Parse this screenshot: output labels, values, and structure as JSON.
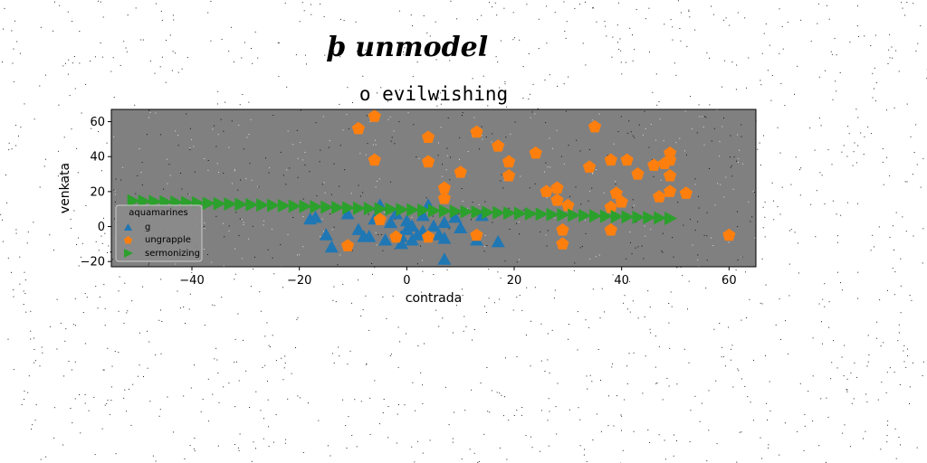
{
  "chart_data": {
    "type": "scatter",
    "suptitle": "ϸ unmodel",
    "title": "o evilwishing",
    "xlabel": "contrada",
    "ylabel": "venkata",
    "xlim": [
      -55,
      65
    ],
    "ylim": [
      -23,
      67
    ],
    "xticks": [
      -40,
      -20,
      0,
      20,
      40,
      60
    ],
    "yticks": [
      -20,
      0,
      20,
      40,
      60
    ],
    "xtick_labels": [
      "−40",
      "−20",
      "0",
      "20",
      "40",
      "60"
    ],
    "ytick_labels": [
      "−20",
      "0",
      "20",
      "40",
      "60"
    ],
    "legend": {
      "title": "aquamarines",
      "location": "lower-left"
    },
    "colors": {
      "axes_bg": "#808080",
      "g": "#1f77b4",
      "ungrapple": "#ff7f0e",
      "sermonizing": "#2ca02c"
    },
    "series": [
      {
        "name": "g",
        "marker": "triangle",
        "points": [
          [
            -18,
            4
          ],
          [
            -17,
            5
          ],
          [
            -15,
            -5
          ],
          [
            -14,
            -12
          ],
          [
            -11,
            7
          ],
          [
            -9,
            -2
          ],
          [
            -8,
            -6
          ],
          [
            -7,
            -6
          ],
          [
            -6,
            4
          ],
          [
            -5,
            12
          ],
          [
            -4,
            -8
          ],
          [
            -3,
            2
          ],
          [
            -2,
            7
          ],
          [
            -1,
            -6
          ],
          [
            0,
            3
          ],
          [
            0,
            -2
          ],
          [
            1,
            -8
          ],
          [
            1,
            0
          ],
          [
            2,
            -5
          ],
          [
            3,
            6
          ],
          [
            4,
            12
          ],
          [
            5,
            0
          ],
          [
            6,
            -5
          ],
          [
            7,
            2
          ],
          [
            7,
            -7
          ],
          [
            7,
            -19
          ],
          [
            9,
            5
          ],
          [
            10,
            -1
          ],
          [
            13,
            -8
          ],
          [
            14,
            6
          ],
          [
            17,
            -9
          ],
          [
            -1,
            -10
          ],
          [
            3,
            -3
          ]
        ]
      },
      {
        "name": "ungrapple",
        "marker": "pentagon",
        "points": [
          [
            -9,
            56
          ],
          [
            -6,
            63
          ],
          [
            -6,
            38
          ],
          [
            4,
            51
          ],
          [
            4,
            37
          ],
          [
            7,
            22
          ],
          [
            7,
            16
          ],
          [
            10,
            31
          ],
          [
            13,
            54
          ],
          [
            17,
            46
          ],
          [
            19,
            37
          ],
          [
            19,
            29
          ],
          [
            24,
            42
          ],
          [
            26,
            20
          ],
          [
            28,
            22
          ],
          [
            28,
            15
          ],
          [
            29,
            -2
          ],
          [
            29,
            -10
          ],
          [
            30,
            12
          ],
          [
            34,
            34
          ],
          [
            35,
            57
          ],
          [
            38,
            38
          ],
          [
            38,
            11
          ],
          [
            38,
            -2
          ],
          [
            39,
            19
          ],
          [
            40,
            14
          ],
          [
            41,
            38
          ],
          [
            43,
            30
          ],
          [
            46,
            35
          ],
          [
            47,
            17
          ],
          [
            48,
            36
          ],
          [
            49,
            42
          ],
          [
            49,
            38
          ],
          [
            49,
            29
          ],
          [
            49,
            20
          ],
          [
            52,
            19
          ],
          [
            60,
            -5
          ],
          [
            -11,
            -11
          ],
          [
            -2,
            -6
          ],
          [
            4,
            -6
          ],
          [
            13,
            -5
          ],
          [
            -5,
            4
          ]
        ]
      },
      {
        "name": "sermonizing",
        "marker": "triangle-right",
        "points": [
          [
            -51,
            14.7
          ],
          [
            -49,
            14.5
          ],
          [
            -47,
            14.3
          ],
          [
            -45,
            14.1
          ],
          [
            -43,
            13.9
          ],
          [
            -41,
            13.7
          ],
          [
            -39,
            13.5
          ],
          [
            -37,
            13.3
          ],
          [
            -35,
            13.1
          ],
          [
            -33,
            12.9
          ],
          [
            -31,
            12.7
          ],
          [
            -29,
            12.5
          ],
          [
            -27,
            12.3
          ],
          [
            -25,
            12.1
          ],
          [
            -23,
            11.9
          ],
          [
            -21,
            11.7
          ],
          [
            -19,
            11.5
          ],
          [
            -17,
            11.3
          ],
          [
            -15,
            11.1
          ],
          [
            -13,
            10.9
          ],
          [
            -11,
            10.7
          ],
          [
            -9,
            10.5
          ],
          [
            -7,
            10.3
          ],
          [
            -5,
            10.1
          ],
          [
            -3,
            9.9
          ],
          [
            -1,
            9.7
          ],
          [
            1,
            9.5
          ],
          [
            3,
            9.3
          ],
          [
            5,
            9.1
          ],
          [
            7,
            8.9
          ],
          [
            9,
            8.7
          ],
          [
            11,
            8.5
          ],
          [
            13,
            8.3
          ],
          [
            15,
            8.1
          ],
          [
            17,
            7.9
          ],
          [
            19,
            7.7
          ],
          [
            21,
            7.5
          ],
          [
            23,
            7.3
          ],
          [
            25,
            7.1
          ],
          [
            27,
            6.9
          ],
          [
            29,
            6.7
          ],
          [
            31,
            6.5
          ],
          [
            33,
            6.3
          ],
          [
            35,
            6.1
          ],
          [
            37,
            5.9
          ],
          [
            39,
            5.7
          ],
          [
            41,
            5.5
          ],
          [
            43,
            5.3
          ],
          [
            45,
            5.1
          ],
          [
            47,
            4.9
          ],
          [
            49,
            4.7
          ]
        ]
      }
    ]
  }
}
